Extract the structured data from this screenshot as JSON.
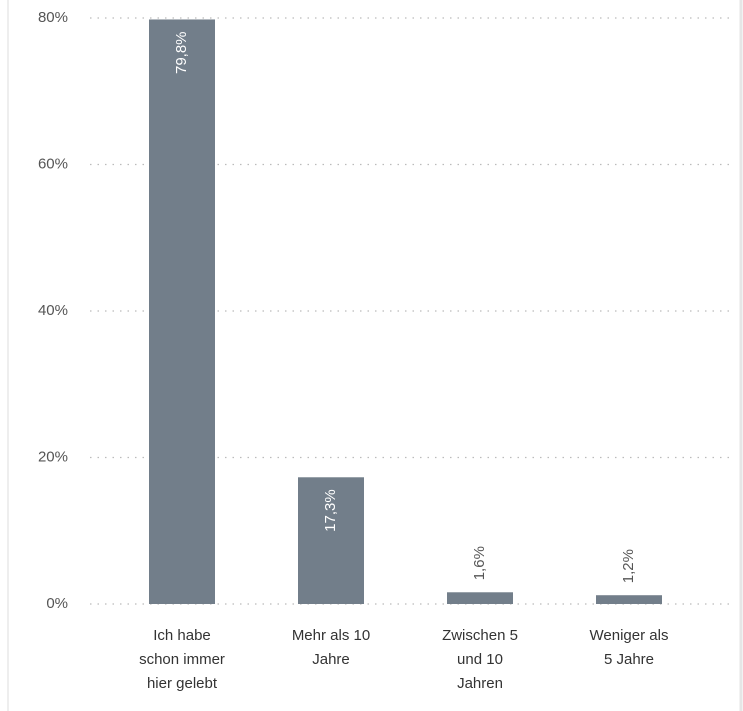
{
  "chart_data": {
    "type": "bar",
    "categories": [
      "Ich habe\nschon immer\nhier gelebt",
      "Mehr als 10\nJahre",
      "Zwischen 5\nund 10\nJahren",
      "Weniger als\n5 Jahre"
    ],
    "values": [
      79.8,
      17.3,
      1.6,
      1.2
    ],
    "value_labels": [
      "79,8%",
      "17,3%",
      "1,6%",
      "1,2%"
    ],
    "color": "#727e8a",
    "ylim": [
      0,
      80
    ],
    "yticks": [
      {
        "value": 0,
        "label": "0%"
      },
      {
        "value": 20,
        "label": "20%"
      },
      {
        "value": 40,
        "label": "40%"
      },
      {
        "value": 60,
        "label": "60%"
      },
      {
        "value": 80,
        "label": "80%"
      }
    ],
    "grid": true
  }
}
